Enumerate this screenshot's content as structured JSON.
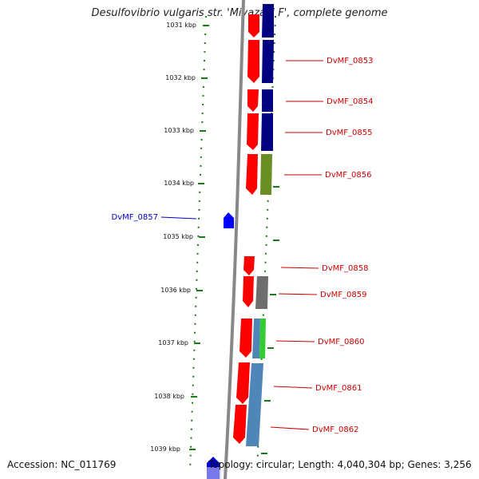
{
  "title": "Desulfovibrio vulgaris str. 'Miyazaki F', complete genome",
  "footer": {
    "accession": "Accession: NC_011769",
    "topology": "Topology: circular; Length: 4,040,304 bp; Genes: 3,256"
  },
  "ticks": [
    {
      "label": "1031 kbp"
    },
    {
      "label": "1032 kbp"
    },
    {
      "label": "1033 kbp"
    },
    {
      "label": "1034 kbp"
    },
    {
      "label": "1035 kbp"
    },
    {
      "label": "1036 kbp"
    },
    {
      "label": "1037 kbp"
    },
    {
      "label": "1038 kbp"
    },
    {
      "label": "1039 kbp"
    }
  ],
  "gene_labels": [
    {
      "name": "DvMF_0853",
      "strand": "forward"
    },
    {
      "name": "DvMF_0854",
      "strand": "forward"
    },
    {
      "name": "DvMF_0855",
      "strand": "forward"
    },
    {
      "name": "DvMF_0856",
      "strand": "forward"
    },
    {
      "name": "DvMF_0857",
      "strand": "reverse"
    },
    {
      "name": "DvMF_0858",
      "strand": "forward"
    },
    {
      "name": "DvMF_0859",
      "strand": "forward"
    },
    {
      "name": "DvMF_0860",
      "strand": "forward"
    },
    {
      "name": "DvMF_0861",
      "strand": "forward"
    },
    {
      "name": "DvMF_0862",
      "strand": "forward"
    }
  ],
  "colors": {
    "forward_label": "#cc0000",
    "reverse_label": "#0000cc",
    "forward_gene": "#ff0000",
    "reverse_gene": "#0000ff",
    "backbone": "#888888",
    "tick": "#1a7a1a",
    "cog_navy": "#000080",
    "cog_olive": "#6b8e23",
    "cog_gray": "#6e6e6e",
    "cog_steelblue": "#4f86b8",
    "cog_green": "#33cc33"
  }
}
